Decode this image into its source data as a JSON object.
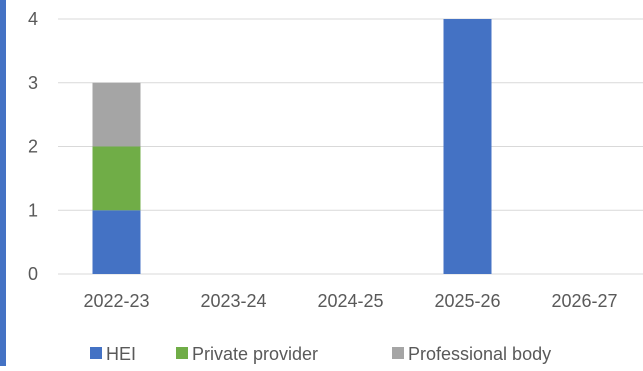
{
  "chart_data": {
    "type": "bar",
    "stacked": true,
    "title": "",
    "xlabel": "",
    "ylabel": "",
    "ylim": [
      0,
      4
    ],
    "yticks": [
      0,
      1,
      2,
      3,
      4
    ],
    "grid": true,
    "legend_position": "bottom",
    "categories": [
      "2022-23",
      "2023-24",
      "2024-25",
      "2025-26",
      "2026-27"
    ],
    "series": [
      {
        "name": "HEI",
        "color": "#4472C4",
        "values": [
          1,
          0,
          0,
          4,
          0
        ]
      },
      {
        "name": "Private provider",
        "color": "#70AD47",
        "values": [
          1,
          0,
          0,
          0,
          0
        ]
      },
      {
        "name": "Professional body",
        "color": "#A5A5A5",
        "values": [
          1,
          0,
          0,
          0,
          0
        ]
      }
    ],
    "colors": {
      "accent_bar": "#4472C4",
      "gridline": "#D9D9D9",
      "text": "#595959"
    }
  }
}
